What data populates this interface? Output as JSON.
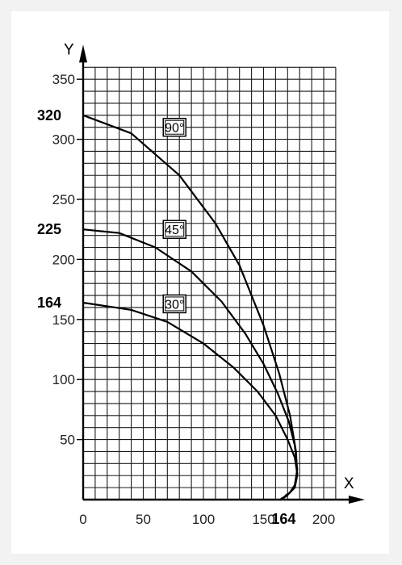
{
  "chart_data": {
    "type": "line",
    "xlabel": "X",
    "ylabel": "Y",
    "xlim": [
      0,
      210
    ],
    "ylim": [
      0,
      360
    ],
    "x_ticks": [
      0,
      50,
      100,
      150,
      200
    ],
    "y_ticks": [
      50,
      100,
      150,
      200,
      250,
      300,
      350
    ],
    "highlight_y_ticks": [
      320,
      225,
      164
    ],
    "highlight_x_ticks": [
      164
    ],
    "grid": true,
    "series": [
      {
        "name": "90°",
        "x": [
          0,
          40,
          80,
          110,
          130,
          150,
          163,
          172,
          177,
          178,
          176,
          172,
          169,
          167,
          165,
          164
        ],
        "y": [
          320,
          305,
          270,
          230,
          195,
          145,
          105,
          70,
          40,
          20,
          10,
          6,
          4,
          2,
          1,
          0
        ]
      },
      {
        "name": "45°",
        "x": [
          0,
          30,
          60,
          90,
          115,
          135,
          150,
          162,
          171,
          176,
          178,
          176,
          172,
          169,
          166,
          164
        ],
        "y": [
          225,
          222,
          210,
          190,
          165,
          138,
          113,
          88,
          65,
          45,
          25,
          12,
          6,
          3,
          1,
          0
        ]
      },
      {
        "name": "30°",
        "x": [
          0,
          40,
          70,
          100,
          125,
          145,
          160,
          170,
          176,
          178,
          176,
          172,
          169,
          166,
          164
        ],
        "y": [
          164,
          158,
          148,
          130,
          110,
          90,
          70,
          50,
          35,
          22,
          12,
          6,
          3,
          1,
          0
        ]
      }
    ]
  }
}
